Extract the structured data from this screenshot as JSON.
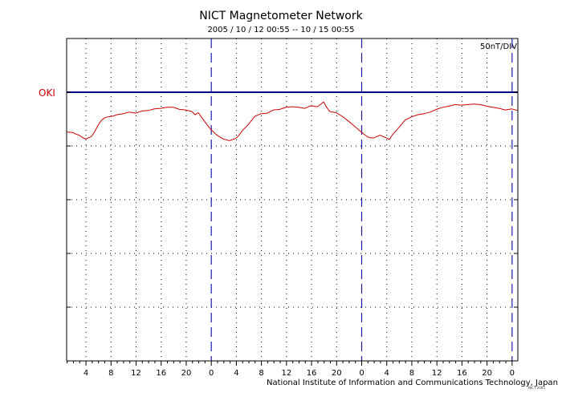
{
  "chart_data": {
    "type": "line",
    "title": "NICT Magnetometer Network",
    "subtitle": "2005 / 10 / 12   00:55 -- 10 / 15   00:55",
    "scale_label": "50nT/DIV",
    "credit": "National Institute of Information and Communications Technology, Japan",
    "stamp": "NICT 2005",
    "station": "OKI",
    "xlabel": "",
    "ylabel": "",
    "x_unit": "hours since 2005-10-12 00:55",
    "xlim": [
      0,
      72
    ],
    "ylim_divisions": [
      0,
      6
    ],
    "x_tick_labels": [
      "4",
      "8",
      "12",
      "16",
      "20",
      "0",
      "4",
      "8",
      "12",
      "16",
      "20",
      "0",
      "4",
      "8",
      "12",
      "16",
      "20",
      "0"
    ],
    "day_boundaries": [
      23.083,
      47.083,
      71.083
    ],
    "baseline_division": 5,
    "grid": true,
    "colors": {
      "trace": "#cc0000",
      "baseline": "#00008b",
      "day_line": "#1a1aa6",
      "station": "#cc0000"
    },
    "series": [
      {
        "name": "OKI",
        "x": [
          0,
          1,
          1.5,
          2,
          2.5,
          3,
          3.5,
          4,
          4.5,
          5,
          5.5,
          6,
          6.5,
          7,
          7.5,
          8,
          9,
          10,
          11,
          12,
          13,
          14,
          15,
          16,
          17,
          18,
          19,
          20,
          20.5,
          21,
          21.5,
          22,
          22.5,
          23,
          24,
          25,
          26,
          27,
          27.5,
          28,
          29,
          30,
          31,
          32,
          33,
          34,
          35,
          36,
          37,
          38,
          39,
          40,
          40.5,
          41,
          41.5,
          42,
          43,
          44,
          45,
          46,
          47,
          48,
          48.5,
          49,
          50,
          51,
          51.5,
          52,
          53,
          54,
          55,
          56,
          57,
          58,
          59,
          60,
          61,
          62,
          63,
          64,
          65,
          66,
          67,
          68,
          69,
          70,
          71,
          72
        ],
        "y": [
          4.26,
          4.25,
          4.22,
          4.2,
          4.16,
          4.13,
          4.15,
          4.18,
          4.27,
          4.38,
          4.47,
          4.52,
          4.54,
          4.55,
          4.56,
          4.58,
          4.6,
          4.63,
          4.61,
          4.65,
          4.66,
          4.69,
          4.7,
          4.72,
          4.72,
          4.68,
          4.67,
          4.64,
          4.58,
          4.62,
          4.54,
          4.46,
          4.38,
          4.31,
          4.2,
          4.13,
          4.1,
          4.14,
          4.2,
          4.28,
          4.4,
          4.55,
          4.6,
          4.61,
          4.67,
          4.68,
          4.72,
          4.73,
          4.72,
          4.7,
          4.75,
          4.73,
          4.77,
          4.82,
          4.72,
          4.64,
          4.62,
          4.55,
          4.46,
          4.36,
          4.26,
          4.17,
          4.15,
          4.15,
          4.2,
          4.15,
          4.12,
          4.21,
          4.34,
          4.48,
          4.54,
          4.58,
          4.6,
          4.63,
          4.68,
          4.72,
          4.74,
          4.77,
          4.76,
          4.77,
          4.78,
          4.77,
          4.74,
          4.72,
          4.7,
          4.67,
          4.69,
          4.66
        ]
      }
    ]
  }
}
